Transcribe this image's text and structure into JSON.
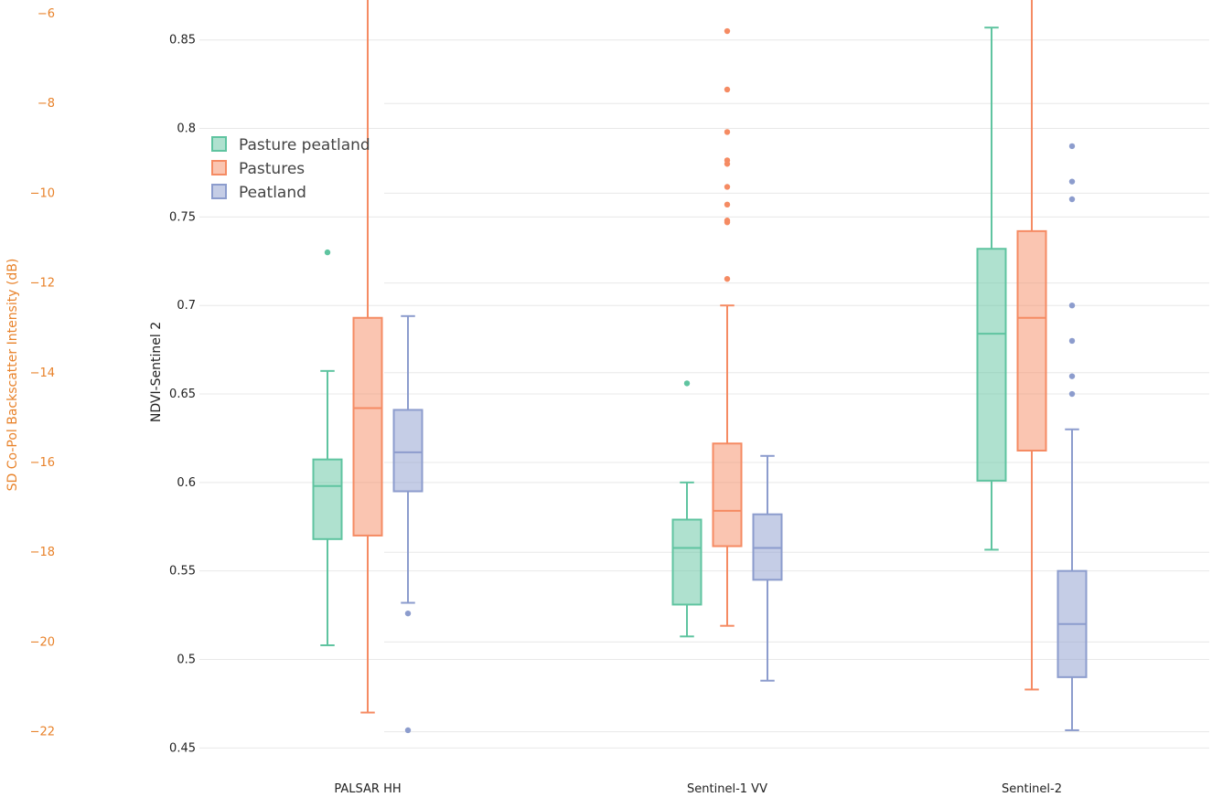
{
  "chart_data": {
    "type": "box",
    "title": "",
    "categories": [
      "PALSAR HH",
      "Sentinel-1 VV",
      "Sentinel-2"
    ],
    "y_axis_right": {
      "title": "NDVI-Sentinel 2",
      "range": [
        0.445,
        0.87
      ],
      "ticks": [
        0.45,
        0.5,
        0.55,
        0.6,
        0.65,
        0.7,
        0.75,
        0.8,
        0.85
      ],
      "tick_labels": [
        "0.45",
        "0.5",
        "0.55",
        "0.6",
        "0.65",
        "0.7",
        "0.75",
        "0.8",
        "0.85"
      ],
      "color": "#222222"
    },
    "y_axis_left": {
      "title": "SD Co-Pol Backscatter Intensity (dB)",
      "ticks": [
        -6,
        -8,
        -10,
        -12,
        -14,
        -16,
        -18,
        -20,
        -22
      ],
      "tick_labels": [
        "−6",
        "−8",
        "−10",
        "−12",
        "−14",
        "−16",
        "−18",
        "−20",
        "−22"
      ],
      "color": "#e8822a"
    },
    "legend": {
      "position": "top-left",
      "entries": [
        "Pasture peatland",
        "Pastures",
        "Peatland"
      ]
    },
    "series": [
      {
        "name": "Pasture peatland",
        "color": "#5fc4a0",
        "boxes": [
          {
            "category": "PALSAR HH",
            "whisker_low": 0.508,
            "q1": 0.568,
            "median": 0.598,
            "q3": 0.613,
            "whisker_high": 0.663,
            "outliers": [
              0.73
            ]
          },
          {
            "category": "Sentinel-1 VV",
            "whisker_low": 0.513,
            "q1": 0.531,
            "median": 0.563,
            "q3": 0.579,
            "whisker_high": 0.6,
            "outliers": [
              0.656
            ]
          },
          {
            "category": "Sentinel-2",
            "whisker_low": 0.562,
            "q1": 0.601,
            "median": 0.684,
            "q3": 0.732,
            "whisker_high": 0.857,
            "outliers": []
          }
        ]
      },
      {
        "name": "Pastures",
        "color": "#f58b63",
        "boxes": [
          {
            "category": "PALSAR HH",
            "whisker_low": 0.47,
            "q1": 0.57,
            "median": 0.642,
            "q3": 0.693,
            "whisker_high": 0.875,
            "outliers": []
          },
          {
            "category": "Sentinel-1 VV",
            "whisker_low": 0.519,
            "q1": 0.564,
            "median": 0.584,
            "q3": 0.622,
            "whisker_high": 0.7,
            "outliers": [
              0.715,
              0.747,
              0.748,
              0.757,
              0.767,
              0.78,
              0.782,
              0.798,
              0.822,
              0.855
            ]
          },
          {
            "category": "Sentinel-2",
            "whisker_low": 0.483,
            "q1": 0.618,
            "median": 0.693,
            "q3": 0.742,
            "whisker_high": 0.875,
            "outliers": []
          }
        ]
      },
      {
        "name": "Peatland",
        "color": "#8c9ccd",
        "boxes": [
          {
            "category": "PALSAR HH",
            "whisker_low": 0.532,
            "q1": 0.595,
            "median": 0.617,
            "q3": 0.641,
            "whisker_high": 0.694,
            "outliers": [
              0.526,
              0.46
            ]
          },
          {
            "category": "Sentinel-1 VV",
            "whisker_low": 0.488,
            "q1": 0.545,
            "median": 0.563,
            "q3": 0.582,
            "whisker_high": 0.615,
            "outliers": []
          },
          {
            "category": "Sentinel-2",
            "whisker_low": 0.46,
            "q1": 0.49,
            "median": 0.52,
            "q3": 0.55,
            "whisker_high": 0.63,
            "outliers": [
              0.65,
              0.66,
              0.68,
              0.7,
              0.76,
              0.77,
              0.79
            ]
          }
        ]
      }
    ]
  }
}
